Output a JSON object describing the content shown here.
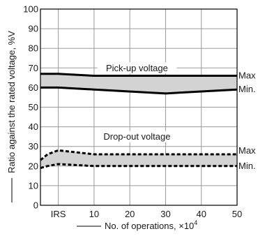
{
  "chart_data": {
    "type": "area",
    "title": "",
    "xlabel": "No. of operations, ×10",
    "xlabel_exponent": "4",
    "ylabel": "Ratio against the rated voltage, %V",
    "x_categories": [
      "IRS",
      "10",
      "20",
      "30",
      "40",
      "50"
    ],
    "x_range": [
      -5,
      50
    ],
    "ylim": [
      0,
      100
    ],
    "y_ticks": [
      "0",
      "10",
      "20",
      "30",
      "40",
      "50",
      "60",
      "70",
      "80",
      "90",
      "100"
    ],
    "grid": true,
    "band_fill_color": "#d3d3d3",
    "line_color": "#000000",
    "bands": [
      {
        "name": "Pick-up voltage",
        "style": "solid",
        "max_label": "Max",
        "min_label": "Min.",
        "max": {
          "x": [
            -5,
            0,
            10,
            50
          ],
          "y": [
            67,
            67,
            66,
            66
          ]
        },
        "min": {
          "x": [
            -5,
            0,
            10,
            30,
            50
          ],
          "y": [
            60,
            60,
            59,
            57,
            59
          ]
        }
      },
      {
        "name": "Drop-out voltage",
        "style": "dashed",
        "max_label": "Max",
        "min_label": "Min.",
        "max": {
          "x": [
            -5,
            -3,
            0,
            10,
            50
          ],
          "y": [
            23,
            26,
            28,
            26,
            26
          ]
        },
        "min": {
          "x": [
            -5,
            -3,
            0,
            10,
            50
          ],
          "y": [
            19,
            20,
            21,
            20,
            20
          ]
        }
      }
    ]
  }
}
